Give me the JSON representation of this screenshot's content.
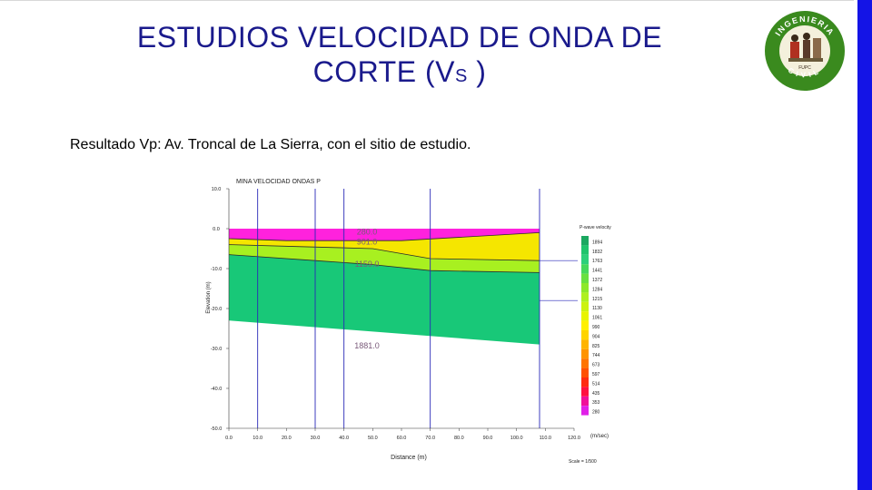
{
  "slide": {
    "title_line1": "ESTUDIOS  VELOCIDAD DE ONDA DE",
    "title_line2_main": "CORTE (V",
    "title_line2_sub": "S",
    "title_line2_end": ")",
    "caption": "Resultado Vp: Av. Troncal de La Sierra, con el sitio de estudio."
  },
  "logo": {
    "top_text": "INGENIERIA",
    "bottom_text": "CIVIL",
    "small_text": "FUPC",
    "accent_color": "#3a8a1e"
  },
  "colors": {
    "accent_bar": "#1414e6",
    "title": "#1a1a8c"
  },
  "chart_data": {
    "type": "area",
    "title": "MINA VELOCIDAD ONDAS P",
    "xlabel": "Distance (m)",
    "ylabel": "Elevation (m)",
    "xlim": [
      0,
      120
    ],
    "ylim": [
      -50,
      10
    ],
    "x_ticks": [
      "0.0",
      "10.0",
      "20.0",
      "30.0",
      "40.0",
      "50.0",
      "60.0",
      "70.0",
      "80.0",
      "90.0",
      "100.0",
      "110.0",
      "120.0"
    ],
    "y_ticks": [
      "10.0",
      "0.0",
      "-10.0",
      "-20.0",
      "-30.0",
      "-40.0",
      "-50.0"
    ],
    "x_data_max": 108,
    "layers": [
      {
        "velocity": "280.0",
        "color": "#ff22dd",
        "top": [
          [
            0,
            0
          ],
          [
            108,
            0
          ]
        ],
        "bottom": [
          [
            0,
            -2.5
          ],
          [
            20,
            -3
          ],
          [
            60,
            -3
          ],
          [
            108,
            -1
          ]
        ]
      },
      {
        "velocity": "901.0",
        "color": "#f5e600",
        "top": [
          [
            0,
            -2.5
          ],
          [
            20,
            -3
          ],
          [
            60,
            -3
          ],
          [
            108,
            -1
          ]
        ],
        "bottom": [
          [
            0,
            -4
          ],
          [
            25,
            -4.5
          ],
          [
            50,
            -5
          ],
          [
            70,
            -7.5
          ],
          [
            108,
            -8
          ]
        ]
      },
      {
        "velocity": "1159.0",
        "color": "#a8f020",
        "top": [
          [
            0,
            -4
          ],
          [
            25,
            -4.5
          ],
          [
            50,
            -5
          ],
          [
            70,
            -7.5
          ],
          [
            108,
            -8
          ]
        ],
        "bottom": [
          [
            0,
            -6.5
          ],
          [
            30,
            -8
          ],
          [
            50,
            -9
          ],
          [
            70,
            -10.5
          ],
          [
            108,
            -11
          ]
        ]
      },
      {
        "velocity": "1881.0",
        "color": "#18c878",
        "top": [
          [
            0,
            -6.5
          ],
          [
            30,
            -8
          ],
          [
            50,
            -9
          ],
          [
            70,
            -10.5
          ],
          [
            108,
            -11
          ]
        ],
        "bottom": [
          [
            0,
            -23
          ],
          [
            108,
            -29
          ]
        ]
      }
    ],
    "layer_labels": [
      {
        "text": "280.0",
        "x": 48,
        "y": -1.5
      },
      {
        "text": "901.0",
        "x": 48,
        "y": -4
      },
      {
        "text": "1159.0",
        "x": 48,
        "y": -9.5
      },
      {
        "text": "1881.0",
        "x": 48,
        "y": -30
      }
    ],
    "vertical_lines_x": [
      10,
      30,
      40,
      70,
      108
    ],
    "legend_title": "P-wave velocity",
    "legend_unit": "(m/sec)",
    "legend_entries": [
      {
        "label": "1894",
        "color": "#1aa860"
      },
      {
        "label": "1832",
        "color": "#1ec46c"
      },
      {
        "label": "1763",
        "color": "#2cd07a"
      },
      {
        "label": "1441",
        "color": "#45d85c"
      },
      {
        "label": "1372",
        "color": "#68e040"
      },
      {
        "label": "1284",
        "color": "#8ce82a"
      },
      {
        "label": "1215",
        "color": "#aef020"
      },
      {
        "label": "1130",
        "color": "#ccf210"
      },
      {
        "label": "1061",
        "color": "#e8f400"
      },
      {
        "label": "990",
        "color": "#fff000"
      },
      {
        "label": "904",
        "color": "#ffd400"
      },
      {
        "label": "825",
        "color": "#ffb400"
      },
      {
        "label": "744",
        "color": "#ff9400"
      },
      {
        "label": "673",
        "color": "#ff7400"
      },
      {
        "label": "597",
        "color": "#ff5000"
      },
      {
        "label": "514",
        "color": "#ff2a10"
      },
      {
        "label": "435",
        "color": "#ff1040"
      },
      {
        "label": "353",
        "color": "#f0109a"
      },
      {
        "label": "280",
        "color": "#e020e8"
      }
    ],
    "scale_label": "Scale = 1/500",
    "grid": false,
    "legend_position": "right"
  }
}
